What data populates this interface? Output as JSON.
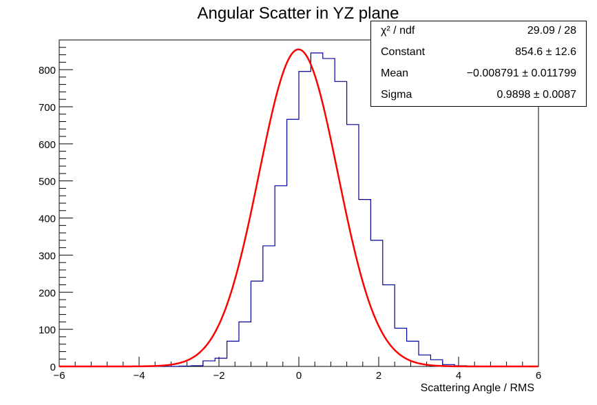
{
  "chart_data": {
    "type": "bar",
    "title": "Angular Scatter in YZ plane",
    "xlabel": "Scattering Angle / RMS",
    "ylabel": "",
    "xlim": [
      -6,
      6
    ],
    "ylim": [
      0,
      880
    ],
    "xticks": [
      "−6",
      "−4",
      "−2",
      "0",
      "2",
      "4",
      "6"
    ],
    "xtick_values": [
      -6,
      -4,
      -2,
      0,
      2,
      4,
      6
    ],
    "yticks": [
      "0",
      "100",
      "200",
      "300",
      "400",
      "500",
      "600",
      "700",
      "800"
    ],
    "ytick_values": [
      0,
      100,
      200,
      300,
      400,
      500,
      600,
      700,
      800
    ],
    "histogram": {
      "bin_width": 0.3,
      "bin_edges_start": -6.0,
      "counts": [
        0,
        0,
        0,
        0,
        0,
        0,
        0,
        0,
        0,
        0,
        1,
        2,
        15,
        22,
        68,
        120,
        230,
        325,
        487,
        666,
        795,
        845,
        830,
        768,
        652,
        450,
        340,
        220,
        103,
        68,
        31,
        18,
        5,
        2,
        1,
        0,
        0,
        0,
        0,
        0
      ],
      "color": "#000099"
    },
    "fit": {
      "function": "gaus",
      "constant": 854.6,
      "mean": -0.008791,
      "sigma": 0.9898,
      "color": "#ff0000"
    },
    "stats": [
      {
        "name": "χ² / ndf",
        "value": "29.09 / 28"
      },
      {
        "name": "Constant",
        "value": "854.6 ± 12.6"
      },
      {
        "name": "Mean",
        "value": "−0.008791 ± 0.011799"
      },
      {
        "name": "Sigma",
        "value": "0.9898 ± 0.0087"
      }
    ]
  }
}
